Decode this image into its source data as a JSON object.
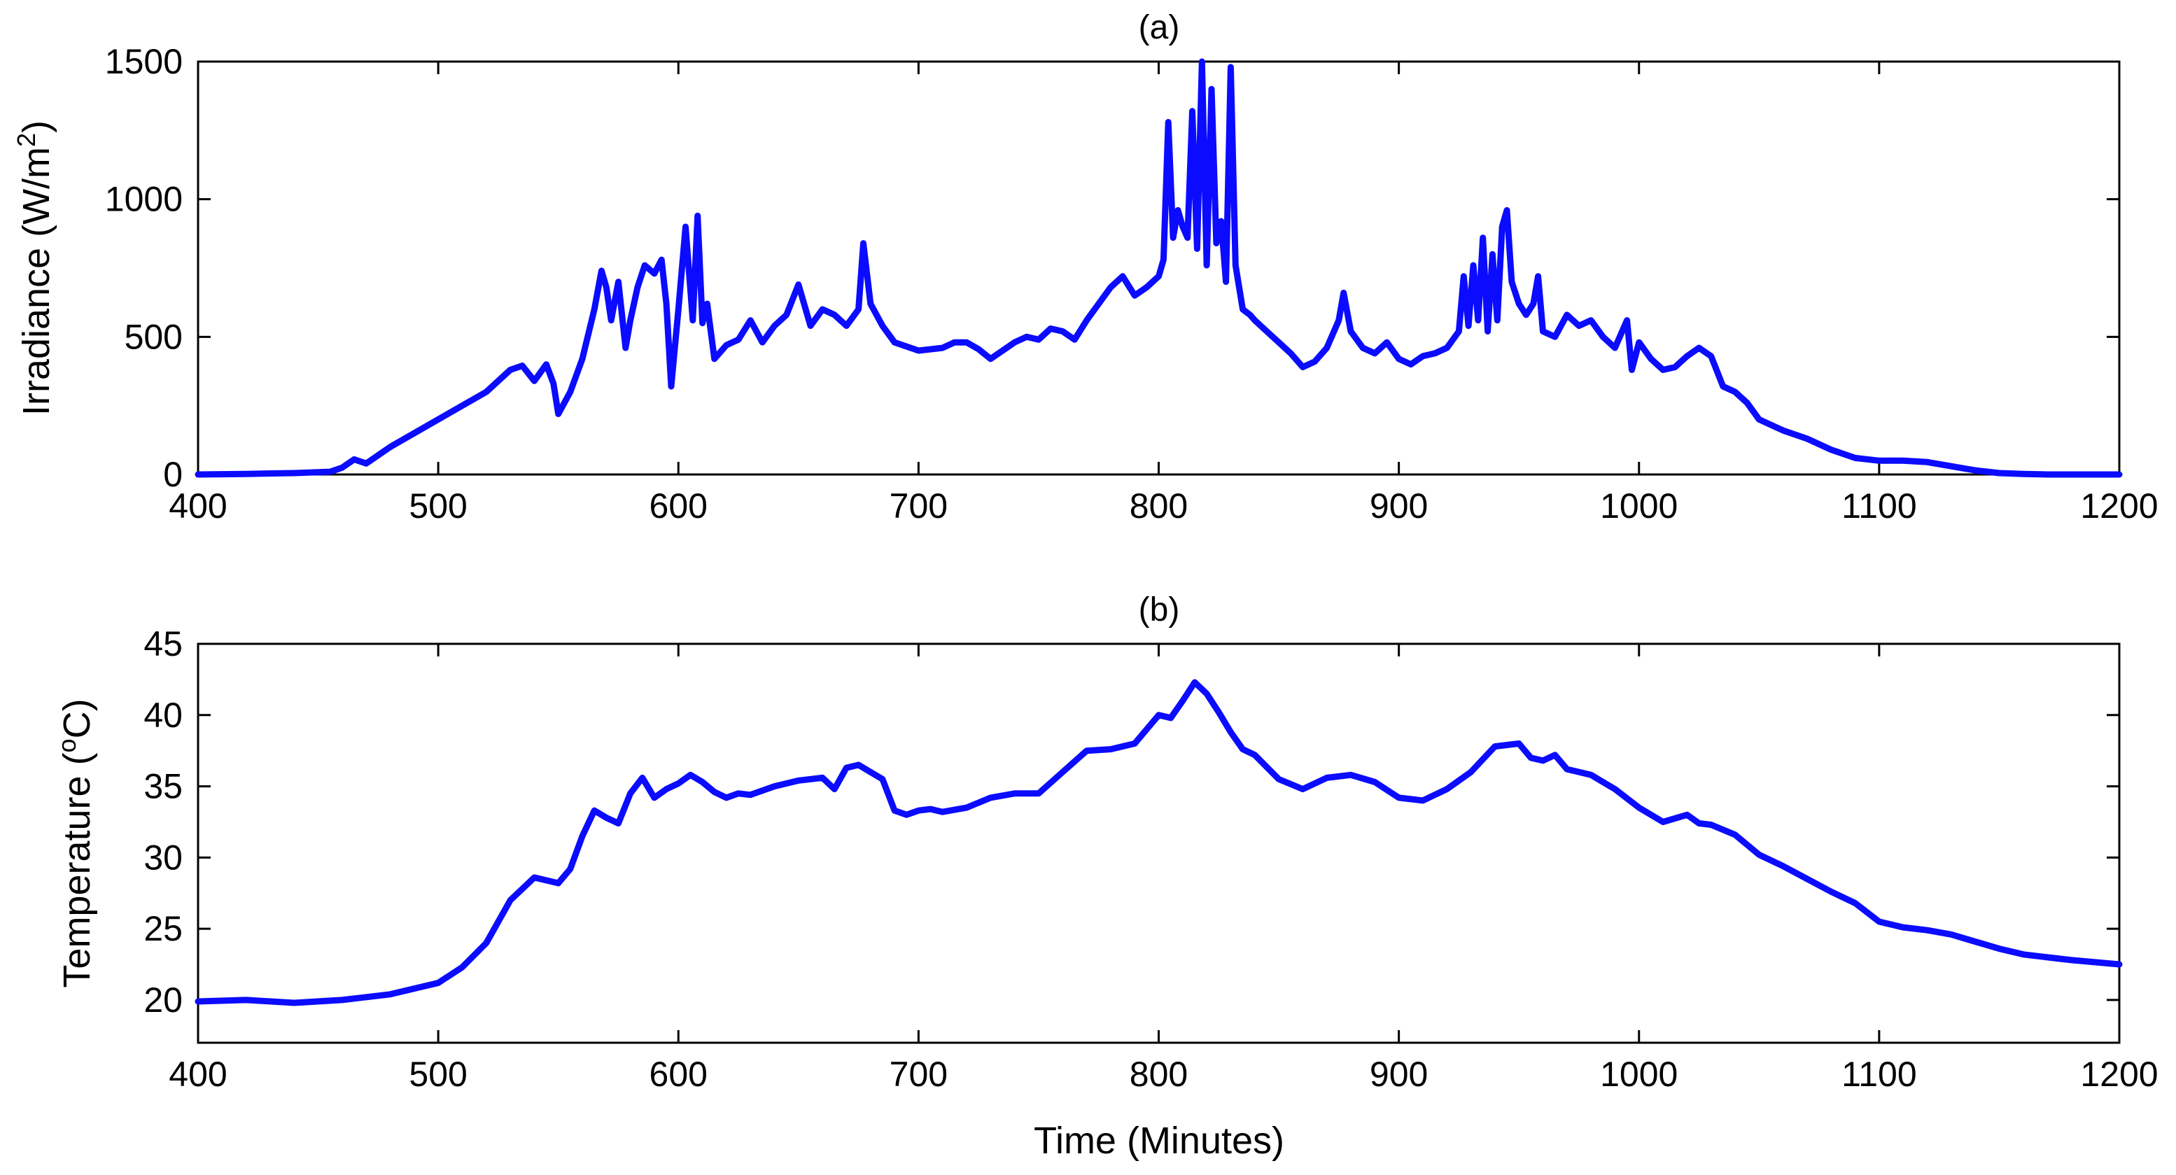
{
  "figure": {
    "background": "#ffffff",
    "line_color": "#0b0bff"
  },
  "chart_data": [
    {
      "type": "line",
      "title": "(a)",
      "xlabel": "",
      "ylabel_main": "Irradiance (W/m",
      "ylabel_sup": "2",
      "ylabel_tail": ")",
      "xlim": [
        400,
        1200
      ],
      "ylim": [
        0,
        1500
      ],
      "xticks": [
        400,
        500,
        600,
        700,
        800,
        900,
        1000,
        1100,
        1200
      ],
      "yticks": [
        0,
        500,
        1000,
        1500
      ],
      "grid": false,
      "series": [
        {
          "name": "Irradiance",
          "x": [
            400,
            420,
            440,
            455,
            460,
            465,
            470,
            480,
            500,
            520,
            530,
            535,
            540,
            545,
            548,
            550,
            555,
            560,
            565,
            568,
            570,
            572,
            575,
            578,
            580,
            583,
            586,
            590,
            593,
            595,
            597,
            600,
            603,
            606,
            608,
            610,
            612,
            615,
            620,
            625,
            630,
            635,
            640,
            645,
            650,
            655,
            660,
            665,
            670,
            675,
            677,
            680,
            685,
            690,
            700,
            710,
            715,
            720,
            725,
            730,
            735,
            740,
            745,
            750,
            755,
            760,
            765,
            770,
            775,
            780,
            785,
            790,
            795,
            800,
            802,
            804,
            806,
            808,
            810,
            812,
            814,
            816,
            818,
            820,
            822,
            824,
            826,
            828,
            830,
            832,
            835,
            838,
            840,
            845,
            850,
            855,
            860,
            865,
            870,
            875,
            877,
            880,
            885,
            890,
            895,
            900,
            905,
            910,
            915,
            920,
            925,
            927,
            929,
            931,
            933,
            935,
            937,
            939,
            941,
            943,
            945,
            947,
            950,
            953,
            956,
            958,
            960,
            965,
            970,
            975,
            980,
            985,
            990,
            995,
            997,
            1000,
            1005,
            1010,
            1015,
            1020,
            1025,
            1030,
            1035,
            1040,
            1045,
            1050,
            1060,
            1070,
            1080,
            1090,
            1100,
            1110,
            1120,
            1130,
            1140,
            1150,
            1160,
            1170,
            1180,
            1200
          ],
          "y": [
            0,
            2,
            5,
            10,
            25,
            55,
            40,
            100,
            200,
            300,
            380,
            395,
            340,
            400,
            330,
            220,
            300,
            420,
            600,
            740,
            680,
            560,
            700,
            460,
            560,
            680,
            760,
            730,
            780,
            620,
            320,
            600,
            900,
            560,
            940,
            550,
            620,
            420,
            470,
            490,
            560,
            480,
            540,
            580,
            690,
            540,
            600,
            580,
            540,
            600,
            840,
            620,
            540,
            480,
            450,
            460,
            480,
            480,
            455,
            420,
            450,
            480,
            500,
            490,
            530,
            520,
            490,
            560,
            620,
            680,
            720,
            650,
            680,
            720,
            780,
            1280,
            860,
            960,
            900,
            860,
            1320,
            820,
            1500,
            760,
            1400,
            840,
            920,
            700,
            1480,
            760,
            600,
            580,
            560,
            520,
            480,
            440,
            390,
            410,
            460,
            560,
            660,
            520,
            460,
            440,
            480,
            420,
            400,
            430,
            440,
            460,
            520,
            720,
            540,
            760,
            560,
            860,
            520,
            800,
            560,
            900,
            960,
            700,
            620,
            580,
            620,
            720,
            520,
            500,
            580,
            540,
            560,
            500,
            460,
            560,
            380,
            480,
            420,
            380,
            390,
            430,
            460,
            430,
            320,
            300,
            260,
            200,
            160,
            130,
            90,
            60,
            50,
            50,
            45,
            30,
            15,
            5,
            2,
            0,
            0,
            0
          ]
        }
      ]
    },
    {
      "type": "line",
      "title": "(b)",
      "xlabel": "Time (Minutes)",
      "ylabel_main": "Temperature (",
      "ylabel_sup": "o",
      "ylabel_tail": "C)",
      "xlim": [
        400,
        1200
      ],
      "ylim": [
        17,
        45
      ],
      "xticks": [
        400,
        500,
        600,
        700,
        800,
        900,
        1000,
        1100,
        1200
      ],
      "yticks": [
        20,
        25,
        30,
        35,
        40,
        45
      ],
      "grid": false,
      "series": [
        {
          "name": "Temperature",
          "x": [
            400,
            420,
            440,
            460,
            480,
            500,
            510,
            520,
            530,
            540,
            550,
            555,
            560,
            565,
            570,
            575,
            580,
            585,
            590,
            595,
            600,
            605,
            610,
            615,
            620,
            625,
            630,
            640,
            650,
            660,
            665,
            670,
            675,
            680,
            685,
            690,
            695,
            700,
            705,
            710,
            720,
            730,
            740,
            750,
            760,
            770,
            780,
            790,
            800,
            805,
            810,
            815,
            820,
            825,
            830,
            835,
            840,
            850,
            860,
            870,
            880,
            890,
            900,
            910,
            920,
            930,
            940,
            950,
            955,
            960,
            965,
            970,
            980,
            990,
            1000,
            1010,
            1020,
            1025,
            1030,
            1040,
            1050,
            1060,
            1070,
            1080,
            1090,
            1100,
            1110,
            1120,
            1130,
            1140,
            1150,
            1160,
            1170,
            1180,
            1200
          ],
          "y": [
            19.9,
            20.0,
            19.8,
            20.0,
            20.4,
            21.2,
            22.3,
            24.0,
            27.0,
            28.6,
            28.2,
            29.2,
            31.5,
            33.3,
            32.8,
            32.4,
            34.5,
            35.6,
            34.2,
            34.8,
            35.2,
            35.8,
            35.3,
            34.6,
            34.2,
            34.5,
            34.4,
            35.0,
            35.4,
            35.6,
            34.8,
            36.3,
            36.5,
            36.0,
            35.5,
            33.3,
            33.0,
            33.3,
            33.4,
            33.2,
            33.5,
            34.2,
            34.5,
            34.5,
            36.0,
            37.5,
            37.6,
            38.0,
            40.0,
            39.8,
            41.0,
            42.3,
            41.5,
            40.2,
            38.8,
            37.6,
            37.2,
            35.5,
            34.8,
            35.6,
            35.8,
            35.3,
            34.2,
            34.0,
            34.8,
            36.0,
            37.8,
            38.0,
            37.0,
            36.8,
            37.2,
            36.2,
            35.8,
            34.8,
            33.5,
            32.5,
            33.0,
            32.4,
            32.3,
            31.6,
            30.2,
            29.4,
            28.5,
            27.6,
            26.8,
            25.5,
            25.1,
            24.9,
            24.6,
            24.1,
            23.6,
            23.2,
            23.0,
            22.8,
            22.5
          ]
        }
      ]
    }
  ]
}
